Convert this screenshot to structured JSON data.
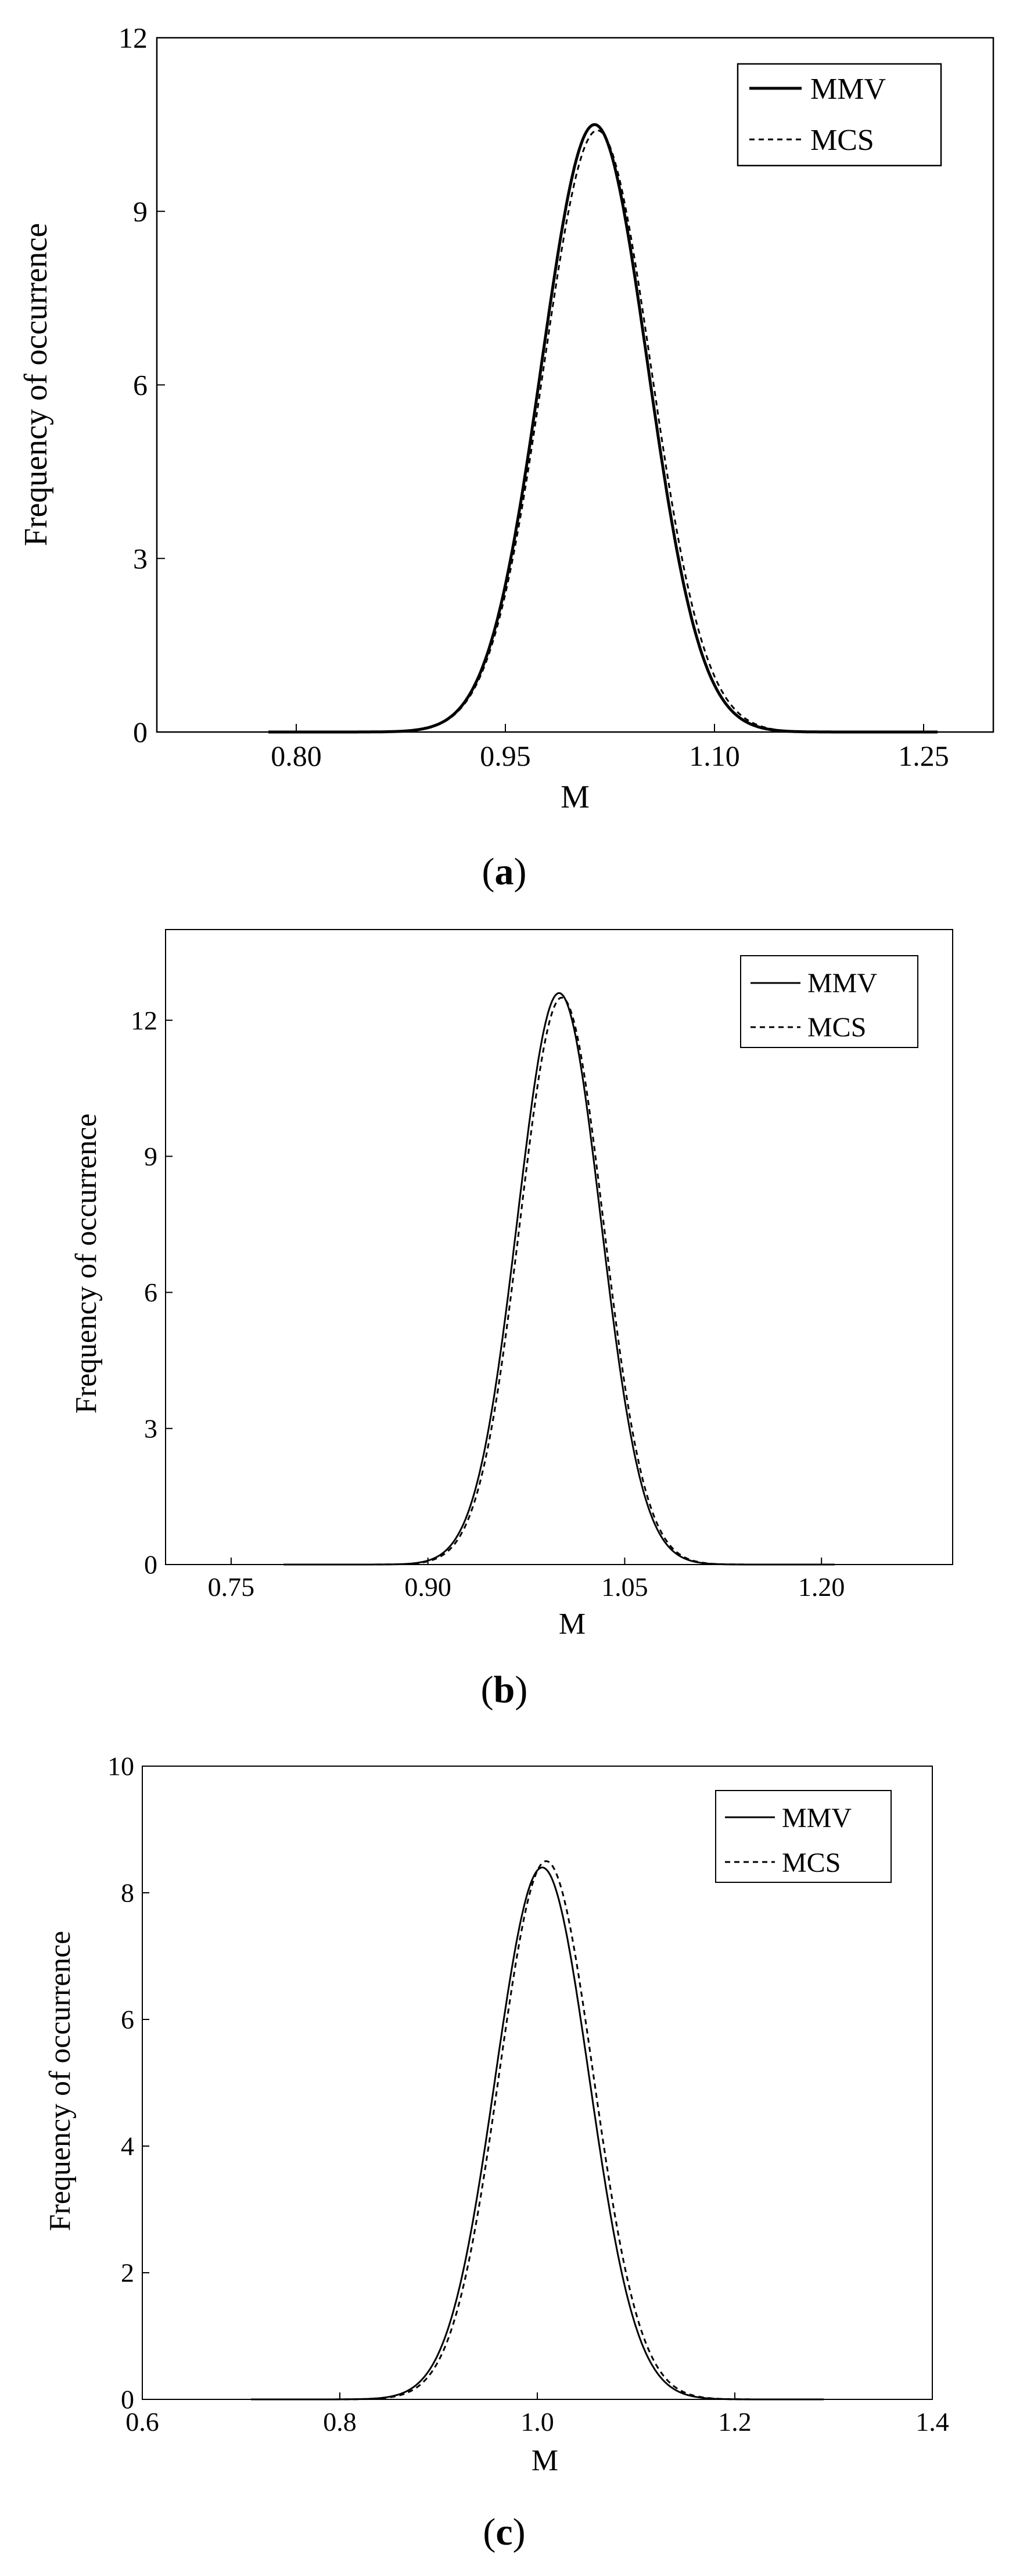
{
  "chart_data": [
    {
      "panel_label": "a",
      "type": "line",
      "xlabel": "M",
      "ylabel": "Frequency of occurrence",
      "xlim": [
        0.7,
        1.3
      ],
      "ylim": [
        0,
        12
      ],
      "xticks": [
        "0.80",
        "0.95",
        "1.10",
        "1.25"
      ],
      "xtick_values": [
        0.8,
        0.95,
        1.1,
        1.25
      ],
      "yticks": [
        "0",
        "3",
        "6",
        "9",
        "12"
      ],
      "ytick_values": [
        0,
        3,
        6,
        9,
        12
      ],
      "legend_position": "top-right",
      "series": [
        {
          "name": "MMV",
          "style": "solid",
          "mean": 1.014,
          "sd": 0.038,
          "peak": 10.5,
          "x_range": [
            0.78,
            1.26
          ]
        },
        {
          "name": "MCS",
          "style": "dashed",
          "mean": 1.016,
          "sd": 0.0385,
          "peak": 10.4,
          "x_range": [
            0.78,
            1.26
          ]
        }
      ]
    },
    {
      "panel_label": "b",
      "type": "line",
      "xlabel": "M",
      "ylabel": "Frequency of occurrence",
      "xlim": [
        0.7,
        1.3
      ],
      "ylim": [
        0,
        14
      ],
      "xticks": [
        "0.75",
        "0.90",
        "1.05",
        "1.20"
      ],
      "xtick_values": [
        0.75,
        0.9,
        1.05,
        1.2
      ],
      "yticks": [
        "0",
        "3",
        "6",
        "9",
        "12"
      ],
      "ytick_values": [
        0,
        3,
        6,
        9,
        12
      ],
      "legend_position": "top-right",
      "series": [
        {
          "name": "MMV",
          "style": "solid",
          "mean": 1.0,
          "sd": 0.0317,
          "peak": 12.6,
          "x_range": [
            0.79,
            1.21
          ]
        },
        {
          "name": "MCS",
          "style": "dashed",
          "mean": 1.002,
          "sd": 0.0317,
          "peak": 12.5,
          "x_range": [
            0.79,
            1.21
          ]
        }
      ]
    },
    {
      "panel_label": "c",
      "type": "line",
      "xlabel": "M",
      "ylabel": "Frequency of occurrence",
      "xlim": [
        0.6,
        1.4
      ],
      "ylim": [
        0,
        10
      ],
      "xticks": [
        "0.6",
        "0.8",
        "1.0",
        "1.2",
        "1.4"
      ],
      "xtick_values": [
        0.6,
        0.8,
        1.0,
        1.2,
        1.4
      ],
      "yticks": [
        "0",
        "2",
        "4",
        "6",
        "8",
        "10"
      ],
      "ytick_values": [
        0,
        2,
        4,
        6,
        8,
        10
      ],
      "legend_position": "top-right",
      "series": [
        {
          "name": "MMV",
          "style": "solid",
          "mean": 1.005,
          "sd": 0.0475,
          "peak": 8.4,
          "x_range": [
            0.71,
            1.29
          ]
        },
        {
          "name": "MCS",
          "style": "dashed",
          "mean": 1.009,
          "sd": 0.0475,
          "peak": 8.5,
          "x_range": [
            0.71,
            1.29
          ]
        }
      ]
    }
  ],
  "captions": {
    "a": {
      "open": "(",
      "letter": "a",
      "close": ")"
    },
    "b": {
      "open": "(",
      "letter": "b",
      "close": ")"
    },
    "c": {
      "open": "(",
      "letter": "c",
      "close": ")"
    }
  }
}
